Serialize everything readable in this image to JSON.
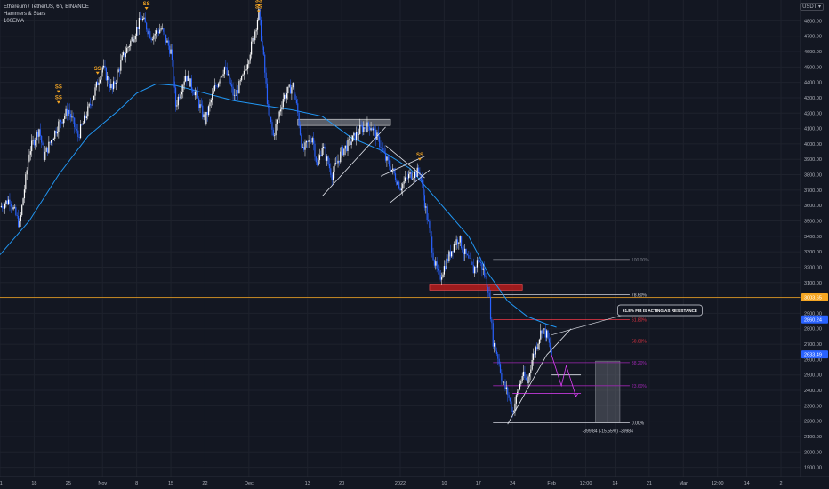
{
  "header": {
    "symbol_line": "Ethereum / TetherUS, 6h, BINANCE",
    "indicator_1": "Hammers & Stars",
    "indicator_2": "100EMA",
    "currency_badge": "USDT ▾"
  },
  "colors": {
    "background": "#131722",
    "grid": "#1e222d",
    "candle_up": "#ffffff",
    "candle_down": "#2962ff",
    "ema": "#2196f3",
    "fib_red": "#f23645",
    "fib_purple": "#9c27b0",
    "fib_gray": "#787b86",
    "orange_line": "#f5a623",
    "resistance_zone": "#b71c1c",
    "gray_zone": "#b2b5be",
    "signal": "#f5a623",
    "pink_arrow": "#e040fb",
    "measure_box": "#5d606b"
  },
  "chart_data": {
    "type": "candlestick",
    "title": "Ethereum / TetherUS, 6h, BINANCE",
    "y_axis": {
      "ticks": [
        1900,
        2000,
        2100,
        2200,
        2300,
        2400,
        2500,
        2600,
        2700,
        2800,
        2900,
        3000,
        3100,
        3200,
        3300,
        3400,
        3500,
        3600,
        3700,
        3800,
        3900,
        4000,
        4100,
        4200,
        4300,
        4400,
        4500,
        4600,
        4700,
        4800
      ],
      "tick_labels": [
        "1900.00",
        "2000.00",
        "2100.00",
        "2200.00",
        "2300.00",
        "2400.00",
        "2500.00",
        "2600.00",
        "2700.00",
        "2800.00",
        "2900.00",
        "3000.00",
        "3100.00",
        "3200.00",
        "3300.00",
        "3400.00",
        "3500.00",
        "3600.00",
        "3700.00",
        "3800.00",
        "3900.00",
        "4000.00",
        "4100.00",
        "4200.00",
        "4300.00",
        "4400.00",
        "4500.00",
        "4600.00",
        "4700.00",
        "4800.00"
      ],
      "range": [
        1840,
        4935
      ]
    },
    "x_axis": {
      "labels": [
        {
          "day": 0,
          "text": "11"
        },
        {
          "day": 7,
          "text": "18"
        },
        {
          "day": 14,
          "text": "25"
        },
        {
          "day": 21,
          "text": "Nov"
        },
        {
          "day": 28,
          "text": "8"
        },
        {
          "day": 35,
          "text": "15"
        },
        {
          "day": 42,
          "text": "22"
        },
        {
          "day": 51,
          "text": "Dec"
        },
        {
          "day": 63,
          "text": "13"
        },
        {
          "day": 70,
          "text": "20"
        },
        {
          "day": 82,
          "text": "2022"
        },
        {
          "day": 91,
          "text": "10"
        },
        {
          "day": 98,
          "text": "17"
        },
        {
          "day": 105,
          "text": "24"
        },
        {
          "day": 113,
          "text": "Feb"
        },
        {
          "day": 120,
          "text": "12:00"
        },
        {
          "day": 126,
          "text": "14"
        },
        {
          "day": 133,
          "text": "21"
        },
        {
          "day": 140,
          "text": "Mar"
        },
        {
          "day": 147,
          "text": "12:00"
        },
        {
          "day": 153,
          "text": "14"
        },
        {
          "day": 160,
          "text": "2"
        }
      ],
      "range": [
        0,
        164
      ]
    },
    "price_path": [
      [
        0,
        3590
      ],
      [
        2,
        3640
      ],
      [
        4,
        3470
      ],
      [
        6,
        3950
      ],
      [
        8,
        4100
      ],
      [
        9,
        3920
      ],
      [
        12,
        4130
      ],
      [
        14,
        4220
      ],
      [
        16,
        4050
      ],
      [
        19,
        4300
      ],
      [
        21,
        4500
      ],
      [
        23,
        4350
      ],
      [
        25,
        4550
      ],
      [
        27,
        4680
      ],
      [
        29,
        4820
      ],
      [
        31,
        4700
      ],
      [
        33,
        4750
      ],
      [
        35,
        4600
      ],
      [
        36,
        4250
      ],
      [
        38,
        4450
      ],
      [
        40,
        4330
      ],
      [
        42,
        4150
      ],
      [
        44,
        4360
      ],
      [
        46,
        4500
      ],
      [
        48,
        4300
      ],
      [
        50,
        4450
      ],
      [
        52,
        4700
      ],
      [
        53,
        4850
      ],
      [
        54,
        4550
      ],
      [
        55,
        4200
      ],
      [
        56,
        4050
      ],
      [
        58,
        4300
      ],
      [
        60,
        4380
      ],
      [
        61,
        4200
      ],
      [
        62,
        3950
      ],
      [
        64,
        4050
      ],
      [
        65,
        3850
      ],
      [
        66,
        3990
      ],
      [
        68,
        3800
      ],
      [
        70,
        3950
      ],
      [
        72,
        4020
      ],
      [
        74,
        4100
      ],
      [
        76,
        4120
      ],
      [
        78,
        3990
      ],
      [
        79,
        3900
      ],
      [
        80,
        3850
      ],
      [
        82,
        3720
      ],
      [
        84,
        3800
      ],
      [
        86,
        3820
      ],
      [
        87,
        3620
      ],
      [
        88,
        3430
      ],
      [
        89,
        3230
      ],
      [
        90,
        3120
      ],
      [
        91,
        3200
      ],
      [
        93,
        3350
      ],
      [
        94,
        3390
      ],
      [
        95,
        3300
      ],
      [
        97,
        3180
      ],
      [
        98,
        3250
      ],
      [
        99,
        3180
      ],
      [
        100,
        3070
      ],
      [
        101,
        2720
      ],
      [
        102,
        2620
      ],
      [
        103,
        2450
      ],
      [
        104,
        2380
      ],
      [
        105,
        2260
      ],
      [
        106,
        2380
      ],
      [
        107,
        2500
      ],
      [
        108,
        2450
      ],
      [
        109,
        2600
      ],
      [
        110,
        2700
      ],
      [
        111,
        2800
      ],
      [
        112,
        2760
      ],
      [
        113,
        2630
      ]
    ],
    "ema100_path": [
      [
        0,
        3280
      ],
      [
        6,
        3500
      ],
      [
        12,
        3800
      ],
      [
        18,
        4050
      ],
      [
        24,
        4210
      ],
      [
        28,
        4330
      ],
      [
        32,
        4390
      ],
      [
        36,
        4380
      ],
      [
        42,
        4330
      ],
      [
        48,
        4280
      ],
      [
        54,
        4250
      ],
      [
        60,
        4220
      ],
      [
        66,
        4180
      ],
      [
        72,
        4040
      ],
      [
        78,
        3960
      ],
      [
        84,
        3840
      ],
      [
        90,
        3620
      ],
      [
        96,
        3400
      ],
      [
        100,
        3160
      ],
      [
        104,
        2980
      ],
      [
        108,
        2880
      ],
      [
        112,
        2830
      ],
      [
        114,
        2810
      ]
    ],
    "signal_marks": [
      {
        "day": 12,
        "price": 4290,
        "label": "SS"
      },
      {
        "day": 12,
        "price": 4360,
        "label": "SS"
      },
      {
        "day": 20,
        "price": 4480,
        "label": "SS"
      },
      {
        "day": 30,
        "price": 4900,
        "label": "SS"
      },
      {
        "day": 53,
        "price": 4920,
        "label": "SS"
      },
      {
        "day": 53,
        "price": 4880,
        "label": "SS"
      },
      {
        "day": 86,
        "price": 3920,
        "label": "SS"
      }
    ],
    "fib_levels": [
      {
        "price": 3250,
        "label": "100.00%",
        "color": "gray",
        "day_from": 101,
        "day_to": 129
      },
      {
        "price": 3020,
        "label": "78.60%",
        "color": "white",
        "day_from": 101,
        "day_to": 129
      },
      {
        "price": 2860,
        "label": "61.80%",
        "color": "red",
        "day_from": 101,
        "day_to": 129
      },
      {
        "price": 2720,
        "label": "50.00%",
        "color": "red",
        "day_from": 101,
        "day_to": 129
      },
      {
        "price": 2580,
        "label": "38.20%",
        "color": "purple",
        "day_from": 101,
        "day_to": 129
      },
      {
        "price": 2430,
        "label": "23.60%",
        "color": "purple",
        "day_from": 101,
        "day_to": 129
      },
      {
        "price": 2190,
        "label": "0.00%",
        "color": "white",
        "day_from": 101,
        "day_to": 129
      }
    ],
    "horizontal_line": {
      "price": 3003.65,
      "label": "3003.65"
    },
    "price_tags": [
      {
        "price": 2860.24,
        "label": "2860.24",
        "color": "#2962ff"
      },
      {
        "price": 2633.49,
        "label": "2633.49",
        "color": "#2962ff"
      }
    ],
    "zones": [
      {
        "kind": "gray",
        "day_from": 61,
        "day_to": 80,
        "price_low": 4120,
        "price_high": 4160
      },
      {
        "kind": "red",
        "day_from": 88,
        "day_to": 107,
        "price_low": 3050,
        "price_high": 3090
      }
    ],
    "trendlines": [
      {
        "from": [
          66,
          3660
        ],
        "to": [
          79,
          4110
        ]
      },
      {
        "from": [
          79,
          3990
        ],
        "to": [
          87,
          3780
        ]
      },
      {
        "from": [
          80,
          3620
        ],
        "to": [
          88,
          3830
        ]
      },
      {
        "from": [
          78,
          3790
        ],
        "to": [
          87,
          3920
        ]
      },
      {
        "from": [
          104,
          2180
        ],
        "to": [
          112,
          2630
        ]
      },
      {
        "from": [
          112,
          2630
        ],
        "to": [
          117,
          2800
        ]
      }
    ],
    "projection_path": [
      [
        113,
        2630
      ],
      [
        115,
        2430
      ],
      [
        116,
        2560
      ],
      [
        118,
        2360
      ]
    ],
    "target_line": {
      "price": 2380,
      "day_from": 105,
      "day_to": 119
    },
    "support_line": {
      "price": 2500,
      "day_from": 113,
      "day_to": 119
    },
    "measure_box": {
      "day_from": 122,
      "day_to": 127,
      "price_low": 2190,
      "price_high": 2590,
      "label": "-399.84 (-15.55%) -39984"
    },
    "callout": {
      "text": "61.8% FIB IS ACTING AS RESISTANCE",
      "day": 128,
      "price": 2920
    }
  }
}
